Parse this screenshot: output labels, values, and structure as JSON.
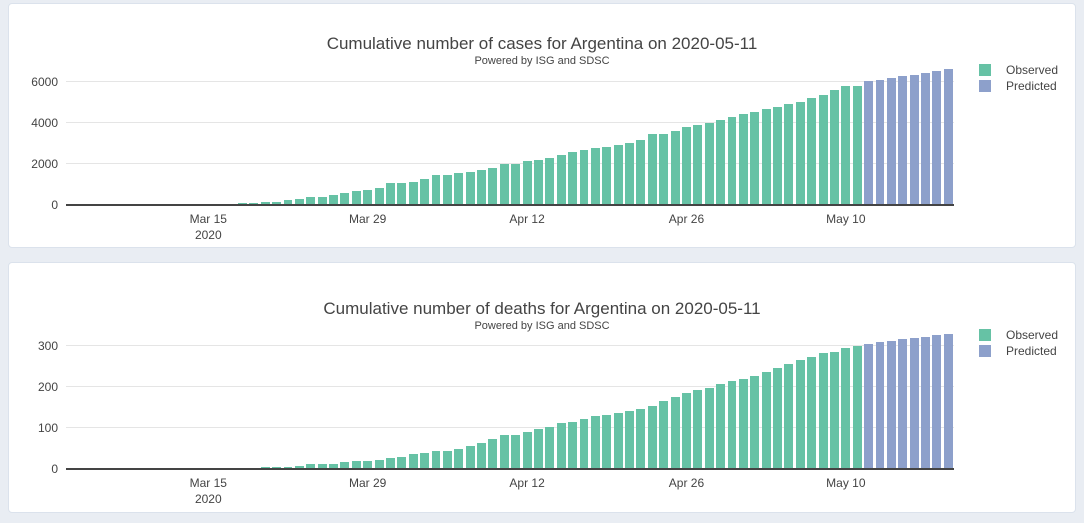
{
  "page": {
    "background_color": "#e9edf3",
    "card_color": "#ffffff"
  },
  "colors": {
    "observed": "#66c2a5",
    "predicted": "#8da0cb",
    "axis": "#444444",
    "grid": "#e5e5e5",
    "text": "#444444"
  },
  "chart_data": [
    {
      "type": "bar",
      "title": "Cumulative number of cases for Argentina on 2020-05-11",
      "subtitle": "Powered by ISG and SDSC",
      "xlabel": "",
      "ylabel": "",
      "ylim": [
        0,
        7000
      ],
      "yticks": [
        0,
        2000,
        4000,
        6000
      ],
      "grid": true,
      "legend_position": "top-right",
      "categories": [
        "2020-03-03",
        "2020-03-04",
        "2020-03-05",
        "2020-03-06",
        "2020-03-07",
        "2020-03-08",
        "2020-03-09",
        "2020-03-10",
        "2020-03-11",
        "2020-03-12",
        "2020-03-13",
        "2020-03-14",
        "2020-03-15",
        "2020-03-16",
        "2020-03-17",
        "2020-03-18",
        "2020-03-19",
        "2020-03-20",
        "2020-03-21",
        "2020-03-22",
        "2020-03-23",
        "2020-03-24",
        "2020-03-25",
        "2020-03-26",
        "2020-03-27",
        "2020-03-28",
        "2020-03-29",
        "2020-03-30",
        "2020-03-31",
        "2020-04-01",
        "2020-04-02",
        "2020-04-03",
        "2020-04-04",
        "2020-04-05",
        "2020-04-06",
        "2020-04-07",
        "2020-04-08",
        "2020-04-09",
        "2020-04-10",
        "2020-04-11",
        "2020-04-12",
        "2020-04-13",
        "2020-04-14",
        "2020-04-15",
        "2020-04-16",
        "2020-04-17",
        "2020-04-18",
        "2020-04-19",
        "2020-04-20",
        "2020-04-21",
        "2020-04-22",
        "2020-04-23",
        "2020-04-24",
        "2020-04-25",
        "2020-04-26",
        "2020-04-27",
        "2020-04-28",
        "2020-04-29",
        "2020-04-30",
        "2020-05-01",
        "2020-05-02",
        "2020-05-03",
        "2020-05-04",
        "2020-05-05",
        "2020-05-06",
        "2020-05-07",
        "2020-05-08",
        "2020-05-09",
        "2020-05-10",
        "2020-05-11",
        "2020-05-12",
        "2020-05-13",
        "2020-05-14",
        "2020-05-15",
        "2020-05-16",
        "2020-05-17",
        "2020-05-18",
        "2020-05-19"
      ],
      "xticks": [
        {
          "index": 12,
          "label": "Mar 15",
          "sublabel": "2020"
        },
        {
          "index": 26,
          "label": "Mar 29"
        },
        {
          "index": 40,
          "label": "Apr 12"
        },
        {
          "index": 54,
          "label": "Apr 26"
        },
        {
          "index": 68,
          "label": "May 10"
        }
      ],
      "series": [
        {
          "name": "Observed",
          "color": "#66c2a5",
          "start_index": 0,
          "values": [
            1,
            1,
            1,
            2,
            8,
            12,
            12,
            17,
            19,
            19,
            31,
            34,
            45,
            56,
            68,
            79,
            97,
            128,
            158,
            266,
            301,
            387,
            387,
            502,
            589,
            690,
            745,
            820,
            1054,
            1054,
            1133,
            1265,
            1451,
            1451,
            1554,
            1628,
            1715,
            1795,
            1975,
            1975,
            2142,
            2208,
            2277,
            2443,
            2571,
            2669,
            2758,
            2839,
            2941,
            3031,
            3144,
            3435,
            3435,
            3607,
            3780,
            3892,
            4003,
            4127,
            4285,
            4428,
            4532,
            4681,
            4783,
            4887,
            5020,
            5208,
            5371,
            5611,
            5776,
            5800
          ]
        },
        {
          "name": "Predicted",
          "color": "#8da0cb",
          "start_index": 70,
          "values": [
            6020,
            6100,
            6180,
            6260,
            6340,
            6430,
            6520,
            6610
          ]
        }
      ]
    },
    {
      "type": "bar",
      "title": "Cumulative number of deaths for Argentina on 2020-05-11",
      "subtitle": "Powered by ISG and SDSC",
      "xlabel": "",
      "ylabel": "",
      "ylim": [
        0,
        350
      ],
      "yticks": [
        0,
        100,
        200,
        300
      ],
      "grid": true,
      "legend_position": "top-right",
      "categories": [
        "2020-03-03",
        "2020-03-04",
        "2020-03-05",
        "2020-03-06",
        "2020-03-07",
        "2020-03-08",
        "2020-03-09",
        "2020-03-10",
        "2020-03-11",
        "2020-03-12",
        "2020-03-13",
        "2020-03-14",
        "2020-03-15",
        "2020-03-16",
        "2020-03-17",
        "2020-03-18",
        "2020-03-19",
        "2020-03-20",
        "2020-03-21",
        "2020-03-22",
        "2020-03-23",
        "2020-03-24",
        "2020-03-25",
        "2020-03-26",
        "2020-03-27",
        "2020-03-28",
        "2020-03-29",
        "2020-03-30",
        "2020-03-31",
        "2020-04-01",
        "2020-04-02",
        "2020-04-03",
        "2020-04-04",
        "2020-04-05",
        "2020-04-06",
        "2020-04-07",
        "2020-04-08",
        "2020-04-09",
        "2020-04-10",
        "2020-04-11",
        "2020-04-12",
        "2020-04-13",
        "2020-04-14",
        "2020-04-15",
        "2020-04-16",
        "2020-04-17",
        "2020-04-18",
        "2020-04-19",
        "2020-04-20",
        "2020-04-21",
        "2020-04-22",
        "2020-04-23",
        "2020-04-24",
        "2020-04-25",
        "2020-04-26",
        "2020-04-27",
        "2020-04-28",
        "2020-04-29",
        "2020-04-30",
        "2020-05-01",
        "2020-05-02",
        "2020-05-03",
        "2020-05-04",
        "2020-05-05",
        "2020-05-06",
        "2020-05-07",
        "2020-05-08",
        "2020-05-09",
        "2020-05-10",
        "2020-05-11",
        "2020-05-12",
        "2020-05-13",
        "2020-05-14",
        "2020-05-15",
        "2020-05-16",
        "2020-05-17",
        "2020-05-18",
        "2020-05-19"
      ],
      "xticks": [
        {
          "index": 12,
          "label": "Mar 15",
          "sublabel": "2020"
        },
        {
          "index": 26,
          "label": "Mar 29"
        },
        {
          "index": 40,
          "label": "Apr 12"
        },
        {
          "index": 54,
          "label": "Apr 26"
        },
        {
          "index": 68,
          "label": "May 10"
        }
      ],
      "series": [
        {
          "name": "Observed",
          "color": "#66c2a5",
          "start_index": 0,
          "values": [
            0,
            0,
            0,
            0,
            1,
            1,
            1,
            1,
            1,
            1,
            2,
            2,
            2,
            2,
            2,
            3,
            3,
            4,
            4,
            6,
            8,
            12,
            12,
            13,
            17,
            19,
            20,
            23,
            27,
            28,
            36,
            39,
            43,
            44,
            48,
            56,
            63,
            72,
            82,
            82,
            90,
            97,
            102,
            111,
            115,
            122,
            129,
            132,
            136,
            142,
            147,
            152,
            165,
            176,
            185,
            192,
            197,
            207,
            214,
            218,
            225,
            237,
            246,
            256,
            264,
            273,
            282,
            285,
            293,
            300
          ]
        },
        {
          "name": "Predicted",
          "color": "#8da0cb",
          "start_index": 70,
          "values": [
            305,
            309,
            312,
            316,
            319,
            322,
            325,
            328
          ]
        }
      ]
    }
  ]
}
